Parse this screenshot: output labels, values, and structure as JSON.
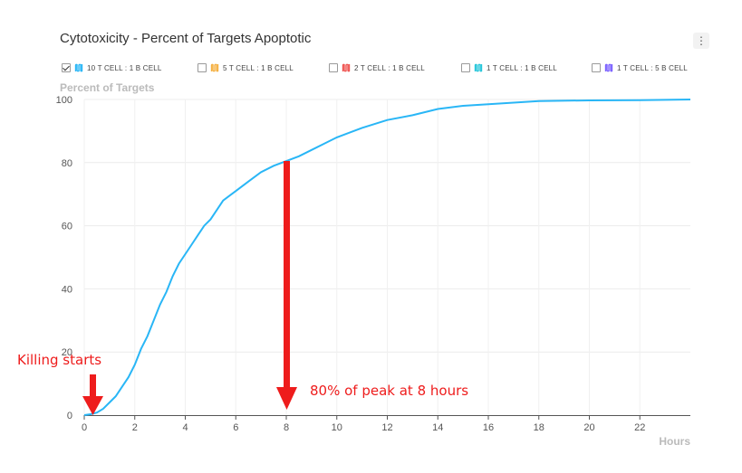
{
  "title": "Cytotoxicity - Percent of Targets Apoptotic",
  "menu_icon": "vertical-ellipsis-icon",
  "legend": [
    {
      "label": "10 T CELL : 1 B CELL",
      "color": "#29b6f6",
      "checked": true
    },
    {
      "label": "5 T CELL : 1 B CELL",
      "color": "#f5b041",
      "checked": false
    },
    {
      "label": "2 T CELL : 1 B CELL",
      "color": "#ef5350",
      "checked": false
    },
    {
      "label": "1 T CELL : 1 B CELL",
      "color": "#26c6da",
      "checked": false
    },
    {
      "label": "1 T CELL : 5 B CELL",
      "color": "#7b61ff",
      "checked": false
    }
  ],
  "annotations": {
    "killing_starts": "Killing starts",
    "peak_note": "80% of peak at 8 hours",
    "arrow_color": "#ee1c1c"
  },
  "chart_data": {
    "type": "line",
    "xlabel": "Hours",
    "ylabel": "Percent of Targets",
    "xlim": [
      0,
      24
    ],
    "ylim": [
      0,
      100
    ],
    "xticks": [
      0,
      2,
      4,
      6,
      8,
      10,
      12,
      14,
      16,
      18,
      20,
      22
    ],
    "yticks": [
      0,
      20,
      40,
      60,
      80,
      100
    ],
    "grid": true,
    "legend_position": "top",
    "series": [
      {
        "name": "10 T CELL : 1 B CELL",
        "color": "#29b6f6",
        "x": [
          0,
          0.25,
          0.5,
          0.75,
          1,
          1.25,
          1.5,
          1.75,
          2,
          2.25,
          2.5,
          2.75,
          3,
          3.25,
          3.5,
          3.75,
          4,
          4.25,
          4.5,
          4.75,
          5,
          5.5,
          6,
          6.5,
          7,
          7.5,
          8,
          8.5,
          9,
          9.5,
          10,
          11,
          12,
          13,
          14,
          15,
          16,
          17,
          18,
          20,
          22,
          24
        ],
        "y": [
          0,
          0.3,
          0.8,
          2,
          4,
          6,
          9,
          12,
          16,
          21,
          25,
          30,
          35,
          39,
          44,
          48,
          51,
          54,
          57,
          60,
          62,
          68,
          71,
          74,
          77,
          79,
          80.5,
          82,
          84,
          86,
          88,
          91,
          93.5,
          95,
          97,
          98,
          98.5,
          99,
          99.5,
          99.7,
          99.8,
          100
        ]
      }
    ]
  }
}
